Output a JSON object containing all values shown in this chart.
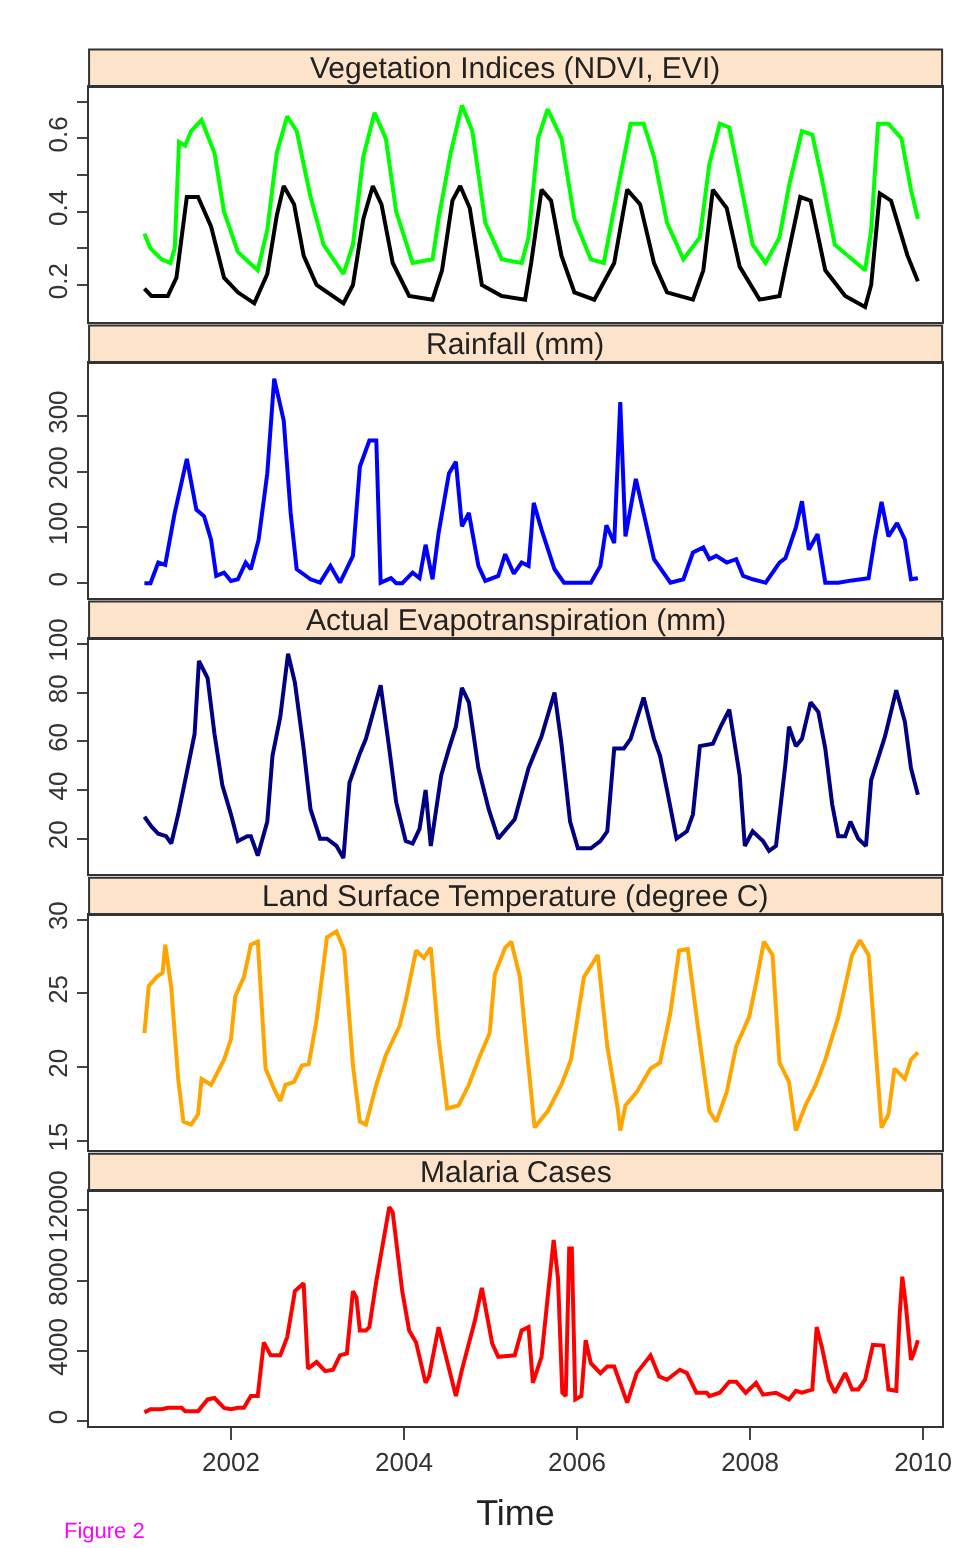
{
  "chart_data": [
    {
      "type": "line",
      "title": "Vegetation Indices (NDVI, EVI)",
      "xlim": [
        2000.36,
        2010.22
      ],
      "xticks": [
        2002,
        2004,
        2006,
        2008,
        2010
      ],
      "ylim": [
        0.1,
        0.74
      ],
      "yticks": [
        0.2,
        {
          "value": 0.3,
          "label": null
        },
        0.4,
        {
          "value": 0.5,
          "label": null
        },
        0.6,
        {
          "value": 0.7,
          "label": null
        }
      ],
      "tick_labels": "y",
      "series": [
        {
          "color": "#00ff00",
          "x": [
            2001.0,
            2001.07,
            2001.2,
            2001.3,
            2001.35,
            2001.4,
            2001.47,
            2001.54,
            2001.66,
            2001.81,
            2001.92,
            2002.08,
            2002.31,
            2002.42,
            2002.53,
            2002.65,
            2002.76,
            2002.92,
            2003.07,
            2003.3,
            2003.41,
            2003.53,
            2003.66,
            2003.79,
            2003.91,
            2004.1,
            2004.33,
            2004.4,
            2004.54,
            2004.67,
            2004.79,
            2004.94,
            2005.13,
            2005.36,
            2005.44,
            2005.55,
            2005.66,
            2005.82,
            2005.97,
            2006.16,
            2006.31,
            2006.47,
            2006.62,
            2006.77,
            2006.89,
            2007.04,
            2007.23,
            2007.42,
            2007.53,
            2007.65,
            2007.76,
            2007.88,
            2008.03,
            2008.18,
            2008.34,
            2008.45,
            2008.6,
            2008.72,
            2008.83,
            2008.98,
            2009.18,
            2009.33,
            2009.4,
            2009.48,
            2009.6,
            2009.75,
            2009.86,
            2009.94
          ],
          "values": [
            0.34,
            0.3,
            0.27,
            0.26,
            0.3,
            0.59,
            0.58,
            0.62,
            0.65,
            0.56,
            0.4,
            0.29,
            0.24,
            0.35,
            0.56,
            0.66,
            0.62,
            0.44,
            0.31,
            0.23,
            0.31,
            0.55,
            0.67,
            0.6,
            0.4,
            0.26,
            0.27,
            0.38,
            0.56,
            0.69,
            0.62,
            0.37,
            0.27,
            0.26,
            0.33,
            0.6,
            0.68,
            0.6,
            0.38,
            0.27,
            0.26,
            0.46,
            0.64,
            0.64,
            0.55,
            0.37,
            0.27,
            0.33,
            0.53,
            0.64,
            0.63,
            0.49,
            0.31,
            0.26,
            0.33,
            0.47,
            0.62,
            0.61,
            0.49,
            0.31,
            0.27,
            0.24,
            0.35,
            0.64,
            0.64,
            0.6,
            0.46,
            0.38
          ]
        },
        {
          "color": "#000000",
          "x": [
            2001.0,
            2001.08,
            2001.27,
            2001.37,
            2001.49,
            2001.62,
            2001.77,
            2001.92,
            2002.08,
            2002.27,
            2002.42,
            2002.53,
            2002.61,
            2002.73,
            2002.84,
            2002.99,
            2003.3,
            2003.41,
            2003.53,
            2003.64,
            2003.74,
            2003.87,
            2004.06,
            2004.33,
            2004.44,
            2004.56,
            2004.65,
            2004.76,
            2004.9,
            2005.13,
            2005.4,
            2005.47,
            2005.59,
            2005.7,
            2005.82,
            2005.97,
            2006.2,
            2006.43,
            2006.58,
            2006.73,
            2006.89,
            2007.04,
            2007.34,
            2007.46,
            2007.57,
            2007.73,
            2007.88,
            2008.11,
            2008.34,
            2008.41,
            2008.58,
            2008.7,
            2008.87,
            2009.1,
            2009.33,
            2009.4,
            2009.5,
            2009.63,
            2009.82,
            2009.94
          ],
          "values": [
            0.19,
            0.17,
            0.17,
            0.22,
            0.44,
            0.44,
            0.36,
            0.22,
            0.18,
            0.15,
            0.23,
            0.39,
            0.47,
            0.42,
            0.28,
            0.2,
            0.15,
            0.2,
            0.38,
            0.47,
            0.42,
            0.26,
            0.17,
            0.16,
            0.24,
            0.43,
            0.47,
            0.41,
            0.2,
            0.17,
            0.16,
            0.26,
            0.46,
            0.43,
            0.28,
            0.18,
            0.16,
            0.26,
            0.46,
            0.42,
            0.26,
            0.18,
            0.16,
            0.24,
            0.46,
            0.41,
            0.25,
            0.16,
            0.17,
            0.25,
            0.44,
            0.43,
            0.24,
            0.17,
            0.14,
            0.2,
            0.45,
            0.43,
            0.28,
            0.21
          ]
        }
      ]
    },
    {
      "type": "line",
      "title": "Rainfall (mm)",
      "xlim": [
        2000.36,
        2010.22
      ],
      "xticks": [
        2002,
        2004,
        2006,
        2008,
        2010
      ],
      "ylim": [
        -26,
        395
      ],
      "yticks": [
        0,
        100,
        200,
        300
      ],
      "tick_labels": "y",
      "series": [
        {
          "color": "#0000ff",
          "x": [
            2001.0,
            2001.07,
            2001.16,
            2001.24,
            2001.35,
            2001.49,
            2001.6,
            2001.69,
            2001.77,
            2001.83,
            2001.92,
            2002.0,
            2002.08,
            2002.17,
            2002.23,
            2002.32,
            2002.42,
            2002.5,
            2002.61,
            2002.69,
            2002.76,
            2002.92,
            2003.03,
            2003.15,
            2003.26,
            2003.41,
            2003.49,
            2003.6,
            2003.68,
            2003.73,
            2003.85,
            2003.91,
            2003.98,
            2004.1,
            2004.18,
            2004.25,
            2004.33,
            2004.4,
            2004.52,
            2004.6,
            2004.67,
            2004.75,
            2004.86,
            2004.94,
            2005.09,
            2005.17,
            2005.27,
            2005.36,
            2005.44,
            2005.5,
            2005.59,
            2005.74,
            2005.85,
            2006.16,
            2006.27,
            2006.34,
            2006.43,
            2006.5,
            2006.56,
            2006.68,
            2006.77,
            2006.89,
            2007.08,
            2007.23,
            2007.34,
            2007.46,
            2007.53,
            2007.61,
            2007.73,
            2007.84,
            2007.92,
            2008.03,
            2008.18,
            2008.34,
            2008.41,
            2008.53,
            2008.6,
            2008.68,
            2008.78,
            2008.87,
            2009.02,
            2009.18,
            2009.37,
            2009.44,
            2009.52,
            2009.6,
            2009.7,
            2009.79,
            2009.86,
            2009.94
          ],
          "values": [
            0,
            0,
            37,
            33,
            126,
            223,
            132,
            120,
            78,
            13,
            19,
            4,
            7,
            37,
            25,
            78,
            197,
            367,
            292,
            126,
            25,
            7,
            1,
            31,
            1,
            49,
            209,
            256,
            256,
            1,
            9,
            0,
            0,
            19,
            9,
            69,
            7,
            90,
            197,
            218,
            102,
            126,
            31,
            4,
            13,
            52,
            17,
            37,
            31,
            144,
            96,
            25,
            1,
            1,
            31,
            104,
            72,
            325,
            84,
            187,
            126,
            43,
            1,
            7,
            55,
            64,
            43,
            49,
            37,
            43,
            13,
            7,
            1,
            37,
            45,
            100,
            147,
            60,
            88,
            1,
            1,
            5,
            9,
            78,
            146,
            84,
            108,
            78,
            7,
            9
          ]
        }
      ]
    },
    {
      "type": "line",
      "title": "Actual Evapotranspiration (mm)",
      "xlim": [
        2000.36,
        2010.22
      ],
      "xticks": [
        2002,
        2004,
        2006,
        2008,
        2010
      ],
      "ylim": [
        5.6,
        102
      ],
      "yticks": [
        20,
        40,
        60,
        80,
        100
      ],
      "tick_labels": "y",
      "series": [
        {
          "color": "#000080",
          "x": [
            2001.0,
            2001.08,
            2001.16,
            2001.25,
            2001.31,
            2001.39,
            2001.5,
            2001.58,
            2001.63,
            2001.73,
            2001.81,
            2001.9,
            2002.0,
            2002.08,
            2002.19,
            2002.23,
            2002.31,
            2002.42,
            2002.48,
            2002.57,
            2002.66,
            2002.74,
            2002.84,
            2002.92,
            2003.03,
            2003.11,
            2003.22,
            2003.3,
            2003.37,
            2003.49,
            2003.56,
            2003.73,
            2003.83,
            2003.91,
            2004.02,
            2004.1,
            2004.18,
            2004.25,
            2004.31,
            2004.43,
            2004.52,
            2004.6,
            2004.67,
            2004.75,
            2004.86,
            2004.98,
            2005.09,
            2005.28,
            2005.44,
            2005.59,
            2005.74,
            2005.82,
            2005.92,
            2006.01,
            2006.16,
            2006.27,
            2006.35,
            2006.43,
            2006.54,
            2006.62,
            2006.77,
            2006.89,
            2006.96,
            2007.04,
            2007.15,
            2007.27,
            2007.34,
            2007.42,
            2007.57,
            2007.66,
            2007.76,
            2007.88,
            2007.94,
            2008.03,
            2008.15,
            2008.22,
            2008.3,
            2008.41,
            2008.45,
            2008.53,
            2008.6,
            2008.7,
            2008.79,
            2008.87,
            2008.95,
            2009.02,
            2009.1,
            2009.16,
            2009.25,
            2009.34,
            2009.4,
            2009.56,
            2009.69,
            2009.79,
            2009.86,
            2009.94
          ],
          "values": [
            29,
            25,
            22,
            21,
            18,
            30,
            49,
            63,
            93,
            86,
            63,
            42,
            30,
            19,
            21,
            21,
            13,
            27,
            54,
            70,
            96,
            84,
            57,
            32,
            20,
            20,
            17,
            12,
            43,
            55,
            61,
            83,
            57,
            35,
            19,
            18,
            24,
            40,
            17,
            46,
            57,
            66,
            82,
            76,
            49,
            32,
            20,
            28,
            49,
            62,
            80,
            59,
            27,
            16,
            16,
            19,
            23,
            57,
            57,
            61,
            78,
            61,
            54,
            40,
            20,
            23,
            30,
            58,
            59,
            66,
            73,
            46,
            17,
            23,
            19,
            15,
            17,
            51,
            66,
            58,
            61,
            76,
            72,
            57,
            34,
            21,
            21,
            27,
            20,
            17,
            44,
            62,
            81,
            68,
            49,
            38
          ]
        }
      ]
    },
    {
      "type": "line",
      "title": "Land Surface Temperature (degree C)",
      "xlim": [
        2000.36,
        2010.22
      ],
      "xticks": [
        2002,
        2004,
        2006,
        2008,
        2010
      ],
      "ylim": [
        14.4,
        30.3
      ],
      "yticks": [
        15,
        20,
        25,
        30
      ],
      "tick_labels": "y",
      "series": [
        {
          "color": "#ffa500",
          "x": [
            2001.0,
            2001.05,
            2001.14,
            2001.21,
            2001.24,
            2001.31,
            2001.39,
            2001.45,
            2001.54,
            2001.62,
            2001.66,
            2001.77,
            2001.92,
            2002.0,
            2002.05,
            2002.15,
            2002.23,
            2002.31,
            2002.4,
            2002.5,
            2002.57,
            2002.63,
            2002.73,
            2002.82,
            2002.9,
            2002.99,
            2003.11,
            2003.22,
            2003.31,
            2003.41,
            2003.49,
            2003.56,
            2003.68,
            2003.79,
            2003.95,
            2004.02,
            2004.14,
            2004.23,
            2004.31,
            2004.4,
            2004.5,
            2004.63,
            2004.75,
            2004.86,
            2004.99,
            2005.05,
            2005.17,
            2005.24,
            2005.34,
            2005.42,
            2005.51,
            2005.66,
            2005.82,
            2005.93,
            2006.08,
            2006.24,
            2006.35,
            2006.47,
            2006.5,
            2006.56,
            2006.69,
            2006.85,
            2006.96,
            2007.08,
            2007.18,
            2007.28,
            2007.42,
            2007.53,
            2007.61,
            2007.73,
            2007.84,
            2007.99,
            2008.07,
            2008.16,
            2008.26,
            2008.34,
            2008.45,
            2008.53,
            2008.64,
            2008.76,
            2008.87,
            2009.02,
            2009.18,
            2009.27,
            2009.37,
            2009.52,
            2009.6,
            2009.67,
            2009.79,
            2009.86,
            2009.94
          ],
          "values": [
            22.3,
            25.5,
            26.1,
            26.4,
            28.3,
            25.4,
            19.2,
            16.3,
            16.1,
            16.8,
            19.2,
            18.8,
            20.5,
            21.9,
            24.8,
            26.1,
            28.3,
            28.5,
            19.9,
            18.5,
            17.7,
            18.8,
            19.0,
            20.1,
            20.2,
            23.2,
            28.8,
            29.2,
            27.9,
            20.1,
            16.3,
            16.1,
            18.8,
            20.8,
            22.8,
            24.5,
            27.9,
            27.4,
            28.1,
            21.9,
            17.2,
            17.4,
            18.8,
            20.5,
            22.3,
            26.3,
            28.1,
            28.5,
            26.1,
            21.2,
            15.9,
            17.0,
            18.8,
            20.5,
            26.1,
            27.6,
            21.4,
            17.2,
            15.7,
            17.4,
            18.3,
            19.9,
            20.3,
            23.7,
            27.9,
            28.0,
            21.7,
            17.0,
            16.3,
            18.3,
            21.4,
            23.4,
            25.7,
            28.5,
            27.6,
            20.3,
            19.0,
            15.7,
            17.4,
            18.8,
            20.5,
            23.4,
            27.6,
            28.6,
            27.6,
            15.9,
            16.8,
            19.9,
            19.2,
            20.5,
            21.0
          ]
        }
      ]
    },
    {
      "type": "line",
      "title": "Malaria Cases",
      "xlabel": "Time",
      "annotations": [
        "Figure 2"
      ],
      "xlim": [
        2000.36,
        2010.22
      ],
      "xticks": [
        2002,
        2004,
        2006,
        2008,
        2010
      ],
      "ylim": [
        -270,
        13100
      ],
      "yticks": [
        0,
        4000,
        8000,
        12000
      ],
      "series": [
        {
          "color": "#ff0000",
          "x": [
            2001.0,
            2001.07,
            2001.2,
            2001.27,
            2001.43,
            2001.47,
            2001.62,
            2001.73,
            2001.81,
            2001.92,
            2002.0,
            2002.08,
            2002.15,
            2002.23,
            2002.31,
            2002.38,
            2002.46,
            2002.57,
            2002.65,
            2002.74,
            2002.84,
            2002.89,
            2002.99,
            2003.09,
            2003.18,
            2003.26,
            2003.34,
            2003.41,
            2003.45,
            2003.49,
            2003.56,
            2003.6,
            2003.68,
            2003.83,
            2003.87,
            2003.98,
            2004.06,
            2004.14,
            2004.25,
            2004.29,
            2004.4,
            2004.6,
            2004.67,
            2004.82,
            2004.9,
            2005.02,
            2005.09,
            2005.28,
            2005.36,
            2005.44,
            2005.49,
            2005.59,
            2005.73,
            2005.78,
            2005.83,
            2005.87,
            2005.91,
            2005.94,
            2005.98,
            2006.05,
            2006.1,
            2006.16,
            2006.27,
            2006.35,
            2006.43,
            2006.58,
            2006.69,
            2006.85,
            2006.95,
            2007.04,
            2007.19,
            2007.27,
            2007.38,
            2007.5,
            2007.53,
            2007.65,
            2007.76,
            2007.84,
            2007.95,
            2008.07,
            2008.15,
            2008.3,
            2008.45,
            2008.53,
            2008.6,
            2008.72,
            2008.77,
            2008.83,
            2008.91,
            2008.98,
            2009.1,
            2009.18,
            2009.25,
            2009.33,
            2009.42,
            2009.54,
            2009.6,
            2009.69,
            2009.73,
            2009.76,
            2009.8,
            2009.86,
            2009.9,
            2009.94
          ],
          "values": [
            490,
            670,
            670,
            750,
            750,
            560,
            560,
            1230,
            1310,
            750,
            670,
            750,
            750,
            1420,
            1420,
            4480,
            3740,
            3740,
            4780,
            7400,
            7850,
            2990,
            3360,
            2840,
            2920,
            3740,
            3850,
            7400,
            7030,
            5160,
            5160,
            5350,
            7960,
            12190,
            11890,
            7400,
            5160,
            4480,
            2170,
            2540,
            5350,
            1420,
            2920,
            5720,
            7590,
            4410,
            3660,
            3740,
            5160,
            5350,
            2170,
            3660,
            10320,
            8150,
            1610,
            1420,
            9830,
            9830,
            1230,
            1420,
            4600,
            3290,
            2730,
            3100,
            3100,
            1050,
            2730,
            3740,
            2540,
            2350,
            2920,
            2730,
            1610,
            1610,
            1420,
            1610,
            2240,
            2240,
            1610,
            2170,
            1500,
            1610,
            1230,
            1720,
            1610,
            1790,
            5350,
            4220,
            2350,
            1610,
            2730,
            1790,
            1790,
            2350,
            4340,
            4300,
            1790,
            1720,
            6090,
            8220,
            6650,
            3480,
            3960,
            4600
          ]
        }
      ]
    }
  ]
}
